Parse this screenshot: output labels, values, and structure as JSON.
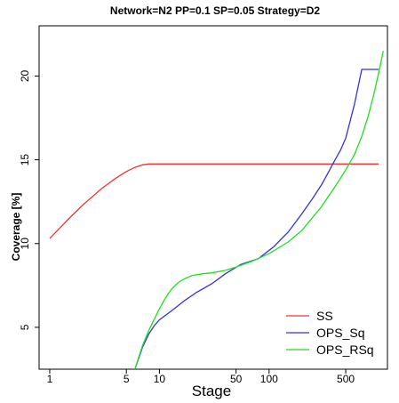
{
  "chart_data": {
    "type": "line",
    "title": "Network=N2 PP=0.1 SP=0.05 Strategy=D2",
    "xlabel": "Stage",
    "ylabel": "Coverage [%]",
    "x_scale": "log",
    "xlim": [
      0.8,
      1200
    ],
    "ylim": [
      2.5,
      23
    ],
    "x_ticks": [
      1,
      5,
      10,
      50,
      100,
      500
    ],
    "y_ticks": [
      5,
      10,
      15,
      20
    ],
    "grid": false,
    "legend_position": "bottom-right",
    "series": [
      {
        "name": "SS",
        "color": "#ee3333",
        "x": [
          1,
          1.5,
          2,
          3,
          4,
          5,
          6,
          7,
          8,
          9,
          10,
          20,
          50,
          100,
          500,
          1000
        ],
        "y": [
          10.3,
          11.5,
          12.3,
          13.3,
          13.9,
          14.3,
          14.55,
          14.7,
          14.75,
          14.75,
          14.75,
          14.75,
          14.75,
          14.75,
          14.75,
          14.75
        ]
      },
      {
        "name": "OPS_Sq",
        "color": "#3333dd",
        "x": [
          5.9,
          7,
          8,
          9,
          10,
          13,
          17,
          22,
          30,
          40,
          55,
          80,
          110,
          150,
          200,
          250,
          300,
          350,
          400,
          450,
          500,
          600,
          700,
          800,
          1000
        ],
        "y": [
          2.4,
          3.8,
          4.6,
          5.1,
          5.45,
          6.0,
          6.6,
          7.1,
          7.6,
          8.2,
          8.75,
          9.1,
          9.8,
          10.7,
          11.8,
          12.7,
          13.5,
          14.3,
          15.0,
          15.6,
          16.3,
          18.3,
          20.4,
          20.4,
          20.4
        ]
      },
      {
        "name": "OPS_RSq",
        "color": "#22dd22",
        "x": [
          5.9,
          7,
          8,
          9,
          10,
          11,
          12,
          13,
          15,
          17,
          20,
          25,
          30,
          40,
          50,
          70,
          100,
          150,
          200,
          300,
          400,
          500,
          600,
          700,
          800,
          900,
          1000,
          1100
        ],
        "y": [
          2.4,
          3.9,
          4.8,
          5.5,
          6.1,
          6.6,
          7.0,
          7.3,
          7.7,
          7.9,
          8.1,
          8.2,
          8.25,
          8.4,
          8.6,
          8.95,
          9.4,
          10.1,
          10.8,
          12.2,
          13.4,
          14.4,
          15.3,
          16.4,
          17.6,
          18.9,
          20.2,
          21.5
        ]
      }
    ]
  }
}
